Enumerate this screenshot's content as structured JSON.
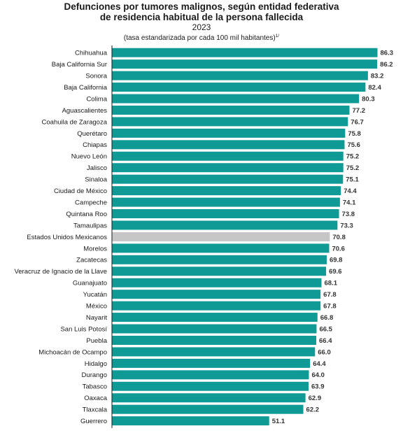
{
  "title_line1": "Defunciones por tumores malignos, según entidad federativa",
  "title_line2": "de residencia habitual de la persona fallecida",
  "year": "2023",
  "subtitle": "(tasa estandarizada por cada 100 mil habitantes)",
  "subtitle_note": "1/",
  "colors": {
    "bar": "#0f9a96",
    "national": "#c6c6c6",
    "axis": "#1a1a1a"
  },
  "chart_data": {
    "type": "bar",
    "orientation": "horizontal",
    "title": "Defunciones por tumores malignos, según entidad federativa de residencia habitual de la persona fallecida",
    "subtitle": "(tasa estandarizada por cada 100 mil habitantes)",
    "xlim": [
      0,
      88
    ],
    "grid": false,
    "categories": [
      "Chihuahua",
      "Baja California Sur",
      "Sonora",
      "Baja California",
      "Colima",
      "Aguascalientes",
      "Coahuila de Zaragoza",
      "Querétaro",
      "Chiapas",
      "Nuevo León",
      "Jalisco",
      "Sinaloa",
      "Ciudad de México",
      "Campeche",
      "Quintana Roo",
      "Tamaulipas",
      "Estados Unidos Mexicanos",
      "Morelos",
      "Zacatecas",
      "Veracruz de Ignacio de la Llave",
      "Guanajuato",
      "Yucatán",
      "México",
      "Nayarit",
      "San Luis Potosí",
      "Puebla",
      "Michoacán de Ocampo",
      "Hidalgo",
      "Durango",
      "Tabasco",
      "Oaxaca",
      "Tlaxcala",
      "Guerrero"
    ],
    "values": [
      86.3,
      86.2,
      83.2,
      82.4,
      80.3,
      77.2,
      76.7,
      75.8,
      75.6,
      75.2,
      75.2,
      75.1,
      74.4,
      74.1,
      73.8,
      73.3,
      70.8,
      70.6,
      69.8,
      69.6,
      68.1,
      67.8,
      67.8,
      66.8,
      66.5,
      66.4,
      66.0,
      64.4,
      64.0,
      63.9,
      62.9,
      62.2,
      51.1
    ],
    "highlight_category": "Estados Unidos Mexicanos"
  }
}
